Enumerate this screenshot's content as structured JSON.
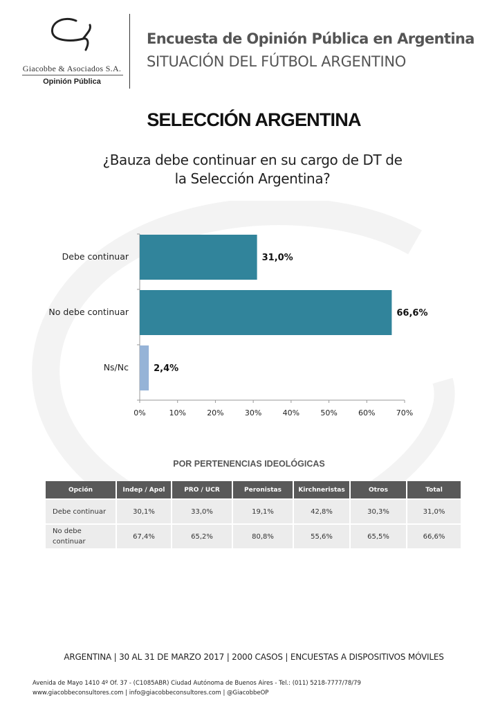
{
  "header": {
    "logo_name": "Giacobbe & Asociados S.A.",
    "logo_sub": "Opinión Pública",
    "title": "Encuesta de Opinión Pública en Argentina",
    "subtitle": "SITUACIÓN DEL FÚTBOL ARGENTINO"
  },
  "section_title": "SELECCIÓN ARGENTINA",
  "chart_data": {
    "type": "bar",
    "orientation": "horizontal",
    "title": "¿Bauza debe continuar en su cargo de DT de la Selección Argentina?",
    "title_lines": [
      "¿Bauza debe continuar en su cargo de DT de",
      "la Selección Argentina?"
    ],
    "categories": [
      "Debe continuar",
      "No debe continuar",
      "Ns/Nc"
    ],
    "values": [
      31.0,
      66.6,
      2.4
    ],
    "data_labels": [
      "31,0%",
      "66,6%",
      "2,4%"
    ],
    "colors": [
      "#31849b",
      "#31849b",
      "#95b3d7"
    ],
    "xlim": [
      0,
      70
    ],
    "xticks": [
      "0%",
      "10%",
      "20%",
      "30%",
      "40%",
      "50%",
      "60%",
      "70%"
    ],
    "grid": false
  },
  "table": {
    "title": "POR PERTENENCIAS IDEOLÓGICAS",
    "headers": [
      "Opción",
      "Indep / Apol",
      "PRO / UCR",
      "Peronistas",
      "Kirchneristas",
      "Otros",
      "Total"
    ],
    "rows": [
      [
        "Debe continuar",
        "30,1%",
        "33,0%",
        "19,1%",
        "42,8%",
        "30,3%",
        "31,0%"
      ],
      [
        "No debe continuar",
        "67,4%",
        "65,2%",
        "80,8%",
        "55,6%",
        "65,5%",
        "66,6%"
      ]
    ]
  },
  "footer": {
    "methodology": "ARGENTINA | 30 AL 31 DE MARZO 2017  | 2000  CASOS | ENCUESTAS A DISPOSITIVOS MÓVILES",
    "address": "Avenida de Mayo 1410 4º Of. 37 - (C1085ABR) Ciudad Autónoma de Buenos Aires - Tel.: (011) 5218-7777/78/79",
    "contact": "www.giacobbeconsultores.com | info@giacobbeconsultores.com | @GiacobbeOP"
  }
}
